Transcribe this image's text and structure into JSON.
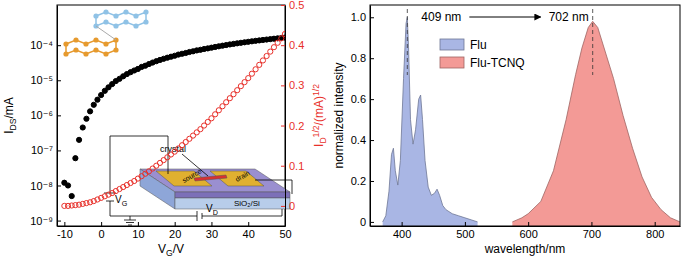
{
  "chart_data": [
    {
      "type": "scatter",
      "xlabel": "VG/V",
      "ylabel": "IDS/mA",
      "y2label": "ID1/2/(mA)1/2",
      "log": "y",
      "xlim": [
        -12,
        50
      ],
      "xticks": [
        -10,
        0,
        10,
        20,
        30,
        40,
        50
      ],
      "ylim": [
        7e-10,
        0.0014
      ],
      "yticks": [
        {
          "value": 1e-09,
          "label": "10⁻⁹"
        },
        {
          "value": 1e-08,
          "label": "10⁻⁸"
        },
        {
          "value": 1e-07,
          "label": "10⁻⁷"
        },
        {
          "value": 1e-06,
          "label": "10⁻⁶"
        },
        {
          "value": 1e-05,
          "label": "10⁻⁵"
        },
        {
          "value": 0.0001,
          "label": "10⁻⁴"
        }
      ],
      "y2lim": [
        -0.05,
        0.5
      ],
      "y2ticks": [
        0,
        0.1,
        0.2,
        0.3,
        0.4,
        0.5
      ],
      "x": [
        -10,
        -9,
        -8,
        -7,
        -6,
        -5,
        -4,
        -3,
        -2,
        -1,
        0,
        1,
        2,
        3,
        4,
        5,
        6,
        7,
        8,
        9,
        10,
        11,
        12,
        13,
        14,
        15,
        16,
        17,
        18,
        19,
        20,
        21,
        22,
        23,
        24,
        25,
        26,
        27,
        28,
        29,
        30,
        31,
        32,
        33,
        34,
        35,
        36,
        37,
        38,
        39,
        40,
        41,
        42,
        43,
        44,
        45,
        46,
        47,
        48,
        49,
        50
      ],
      "series": [
        {
          "color": "#000000",
          "marker": "filled-circle",
          "values": [
            1.2e-08,
            1e-08,
            5e-09,
            6e-08,
            2e-07,
            4.5e-07,
            8e-07,
            1.3e-06,
            2e-06,
            2.8e-06,
            3.8e-06,
            5e-06,
            6.3e-06,
            7.8e-06,
            9.5e-06,
            1.1e-05,
            1.3e-05,
            1.5e-05,
            1.7e-05,
            1.9e-05,
            2.1e-05,
            2.4e-05,
            2.6e-05,
            2.9e-05,
            3.2e-05,
            3.5e-05,
            3.8e-05,
            4.1e-05,
            4.4e-05,
            4.7e-05,
            5e-05,
            5.4e-05,
            5.7e-05,
            6e-05,
            6.4e-05,
            6.7e-05,
            7.1e-05,
            7.4e-05,
            7.8e-05,
            8.1e-05,
            8.5e-05,
            8.9e-05,
            9.3e-05,
            9.7e-05,
            0.000101,
            0.000105,
            0.000109,
            0.000113,
            0.000117,
            0.000121,
            0.000125,
            0.000129,
            0.000133,
            0.000137,
            0.000141,
            0.000145,
            0.000149,
            0.000153,
            0.000157,
            0.000161,
            0.000165
          ]
        },
        {
          "color": "#e8302a",
          "marker": "open-circle",
          "axis": "y2",
          "values": [
            0,
            0,
            0.001,
            0.002,
            0.003,
            0.005,
            0.007,
            0.009,
            0.012,
            0.016,
            0.02,
            0.024,
            0.028,
            0.032,
            0.037,
            0.042,
            0.047,
            0.052,
            0.057,
            0.062,
            0.068,
            0.074,
            0.08,
            0.086,
            0.093,
            0.1,
            0.107,
            0.114,
            0.121,
            0.128,
            0.135,
            0.143,
            0.151,
            0.159,
            0.167,
            0.175,
            0.183,
            0.191,
            0.2,
            0.209,
            0.218,
            0.228,
            0.238,
            0.248,
            0.258,
            0.268,
            0.278,
            0.288,
            0.298,
            0.308,
            0.318,
            0.329,
            0.34,
            0.351,
            0.362,
            0.373,
            0.384,
            0.395,
            0.406,
            0.417,
            0.428
          ]
        }
      ],
      "annotations": [
        {
          "text": "crystal"
        },
        {
          "text": "source"
        },
        {
          "text": "drain"
        },
        {
          "text": "SiO₂/Si"
        },
        {
          "text": "VG"
        },
        {
          "text": "VD"
        }
      ]
    },
    {
      "type": "area",
      "xlabel": "wavelength/nm",
      "ylabel": "normalized intensity",
      "xlim": [
        350,
        840
      ],
      "xticks": [
        400,
        500,
        600,
        700,
        800
      ],
      "ylim": [
        -0.02,
        1.06
      ],
      "yticks": [
        0,
        0.2,
        0.4,
        0.6,
        0.8,
        {
          "value": 1,
          "label": "1.0"
        }
      ],
      "legend": "upper left",
      "series": [
        {
          "name": "Flu",
          "color": "#a9b6e4",
          "x": [
            370,
            375,
            380,
            384,
            387,
            390,
            394,
            398,
            403,
            407,
            409,
            411,
            414,
            418,
            422,
            427,
            430,
            433,
            437,
            442,
            447,
            452,
            456,
            460,
            465,
            470,
            480,
            490,
            500,
            510,
            520
          ],
          "values": [
            0,
            0.03,
            0.15,
            0.33,
            0.36,
            0.25,
            0.18,
            0.3,
            0.7,
            0.97,
            1.0,
            0.85,
            0.5,
            0.38,
            0.45,
            0.6,
            0.62,
            0.5,
            0.3,
            0.17,
            0.13,
            0.14,
            0.16,
            0.13,
            0.08,
            0.06,
            0.04,
            0.03,
            0.02,
            0.01,
            0
          ]
        },
        {
          "name": "Flu-TCNQ",
          "color": "#f39a96",
          "x": [
            575,
            590,
            600,
            620,
            640,
            660,
            675,
            685,
            695,
            702,
            710,
            720,
            735,
            750,
            765,
            780,
            795,
            810,
            825,
            840
          ],
          "values": [
            0,
            0.02,
            0.04,
            0.1,
            0.25,
            0.5,
            0.72,
            0.85,
            0.95,
            0.98,
            0.95,
            0.85,
            0.7,
            0.52,
            0.36,
            0.22,
            0.12,
            0.06,
            0.02,
            0
          ]
        }
      ],
      "annotations": [
        {
          "text": "409 nm",
          "x": 409
        },
        {
          "text": "702 nm",
          "x": 702
        }
      ]
    }
  ]
}
